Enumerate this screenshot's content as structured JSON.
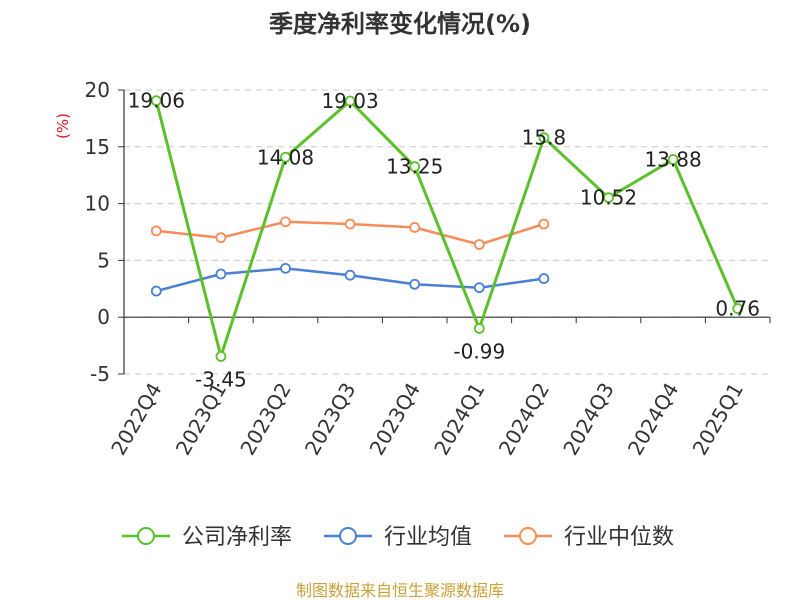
{
  "title": "季度净利率变化情况(%)",
  "source_text": "制图数据来自恒生聚源数据库",
  "chart_data": {
    "type": "line",
    "title": "季度净利率变化情况(%)",
    "ylabel": "(%)",
    "xlabel": "",
    "categories": [
      "2022Q4",
      "2023Q1",
      "2023Q2",
      "2023Q3",
      "2023Q4",
      "2024Q1",
      "2024Q2",
      "2024Q3",
      "2024Q4",
      "2025Q1"
    ],
    "y_ticks": [
      "20",
      "15",
      "10",
      "5",
      "0",
      "-5"
    ],
    "ylim": [
      -5,
      20
    ],
    "grid": true,
    "legend_position": "bottom",
    "series": [
      {
        "name": "公司净利率",
        "color": "#5bc12a",
        "values": [
          19.06,
          -3.45,
          14.08,
          19.03,
          13.25,
          -0.99,
          15.8,
          10.52,
          13.88,
          0.76
        ],
        "labels": [
          "19.06",
          "-3.45",
          "14.08",
          "19.03",
          "13.25",
          "-0.99",
          "15.8",
          "10.52",
          "13.88",
          "0.76"
        ]
      },
      {
        "name": "行业均值",
        "color": "#4a7fd4",
        "values": [
          2.3,
          3.8,
          4.3,
          3.7,
          2.9,
          2.6,
          3.4,
          null,
          null,
          null
        ]
      },
      {
        "name": "行业中位数",
        "color": "#f58d5a",
        "values": [
          7.6,
          7.0,
          8.4,
          8.2,
          7.9,
          6.4,
          8.2,
          null,
          null,
          null
        ]
      }
    ]
  }
}
